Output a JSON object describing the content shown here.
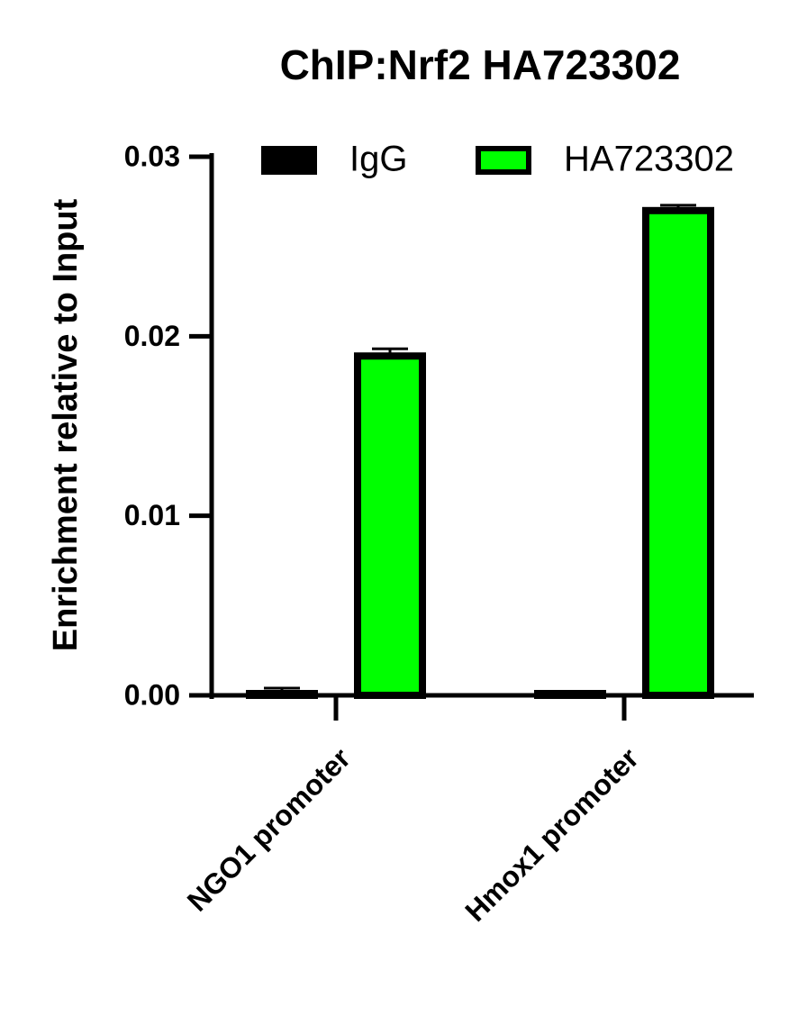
{
  "chart_data": {
    "type": "bar",
    "title": "ChIP:Nrf2 HA723302",
    "y_label": "Enrichment relative to Input",
    "categories": [
      "NGO1 promoter",
      "Hmox1 promoter"
    ],
    "series": [
      {
        "name": "IgG",
        "color": "#000000",
        "values": [
          0.0001,
          0.0001
        ],
        "errors": [
          0.0003,
          0.0001
        ]
      },
      {
        "name": "HA723302",
        "color": "#00ff00",
        "values": [
          0.0189,
          0.027
        ],
        "errors": [
          0.0004,
          0.0003
        ]
      }
    ],
    "ylim": [
      0,
      0.03
    ],
    "yticks": [
      {
        "value": 0,
        "label": "0.00"
      },
      {
        "value": 0.01,
        "label": "0.01"
      },
      {
        "value": 0.02,
        "label": "0.02"
      },
      {
        "value": 0.03,
        "label": "0.03"
      }
    ],
    "legend": "top"
  }
}
